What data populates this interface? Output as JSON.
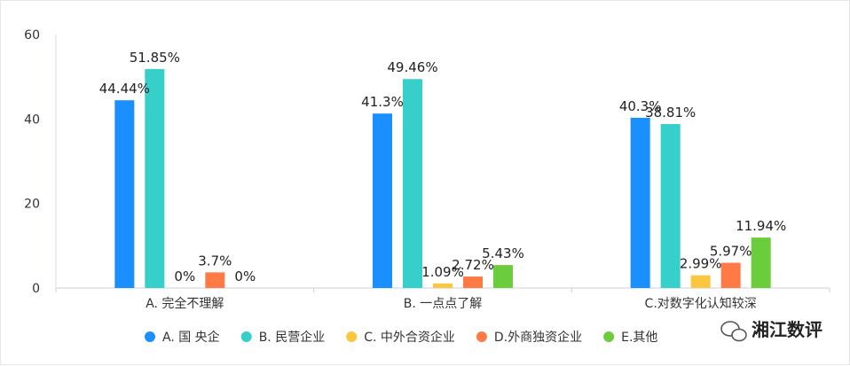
{
  "chart_data": {
    "type": "bar",
    "ylim": [
      0,
      60
    ],
    "yticks": [
      "0",
      "20",
      "40",
      "60"
    ],
    "categories": [
      "A. 完全不理解",
      "B. 一点点了解",
      "C.对数字化认知较深"
    ],
    "series": [
      {
        "name": "A. 国 央企",
        "color": "#1a8fff",
        "values": [
          44.44,
          41.3,
          40.3
        ],
        "labels": [
          "44.44%",
          "41.3%",
          "40.3%"
        ]
      },
      {
        "name": "B. 民营企业",
        "color": "#36cfc9",
        "values": [
          51.85,
          49.46,
          38.81
        ],
        "labels": [
          "51.85%",
          "49.46%",
          "38.81%"
        ]
      },
      {
        "name": "C. 中外合资企业",
        "color": "#fcc63e",
        "values": [
          0,
          1.09,
          2.99
        ],
        "labels": [
          "0%",
          "1.09%",
          "2.99%"
        ]
      },
      {
        "name": "D.外商独资企业",
        "color": "#ff7a45",
        "values": [
          3.7,
          2.72,
          5.97
        ],
        "labels": [
          "3.7%",
          "2.72%",
          "5.97%"
        ]
      },
      {
        "name": "E.其他",
        "color": "#6ccd3c",
        "values": [
          0,
          5.43,
          11.94
        ],
        "labels": [
          "0%",
          "5.43%",
          "11.94%"
        ]
      }
    ],
    "grid": false,
    "legend_position": "bottom"
  },
  "watermark": {
    "text": "湘江数评"
  }
}
